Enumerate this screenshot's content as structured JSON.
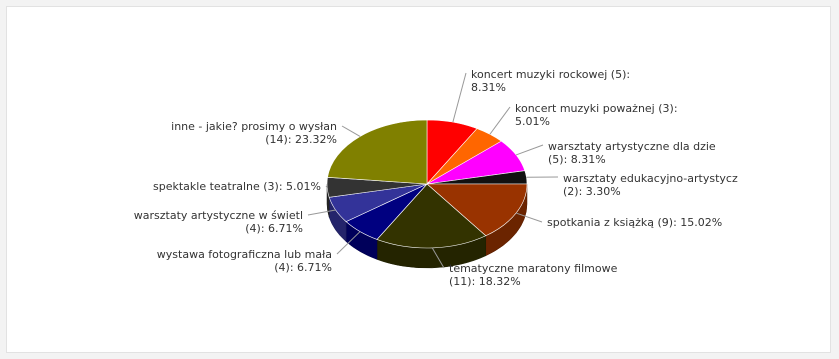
{
  "chart_data": {
    "type": "pie",
    "style": "3d",
    "slices": [
      {
        "label": [
          "koncert muzyki rockowej (5):",
          "8.31%"
        ],
        "count": 5,
        "percent": 8.31,
        "color": "#ff0000"
      },
      {
        "label": [
          "koncert muzyki poważnej (3):",
          "5.01%"
        ],
        "count": 3,
        "percent": 5.01,
        "color": "#ff6600"
      },
      {
        "label": [
          "warsztaty artystyczne dla dzie",
          "(5): 8.31%"
        ],
        "count": 5,
        "percent": 8.31,
        "color": "#ff00ff"
      },
      {
        "label": [
          "warsztaty edukacyjno-artystycz",
          "(2): 3.30%"
        ],
        "count": 2,
        "percent": 3.3,
        "color": "#111111"
      },
      {
        "label": [
          "spotkania z książką (9): 15.02%"
        ],
        "count": 9,
        "percent": 15.02,
        "color": "#993300"
      },
      {
        "label": [
          "tematyczne maratony filmowe",
          "(11): 18.32%"
        ],
        "count": 11,
        "percent": 18.32,
        "color": "#333300"
      },
      {
        "label": [
          "wystawa fotograficzna lub mała",
          "(4): 6.71%"
        ],
        "count": 4,
        "percent": 6.71,
        "color": "#000080"
      },
      {
        "label": [
          "warsztaty artystyczne w świetl",
          "(4): 6.71%"
        ],
        "count": 4,
        "percent": 6.71,
        "color": "#333399"
      },
      {
        "label": [
          "spektakle teatralne (3): 5.01%"
        ],
        "count": 3,
        "percent": 5.01,
        "color": "#333333"
      },
      {
        "label": [
          "inne - jakie? prosimy o wysłan",
          "(14): 23.32%"
        ],
        "count": 14,
        "percent": 23.32,
        "color": "#808000"
      }
    ]
  }
}
